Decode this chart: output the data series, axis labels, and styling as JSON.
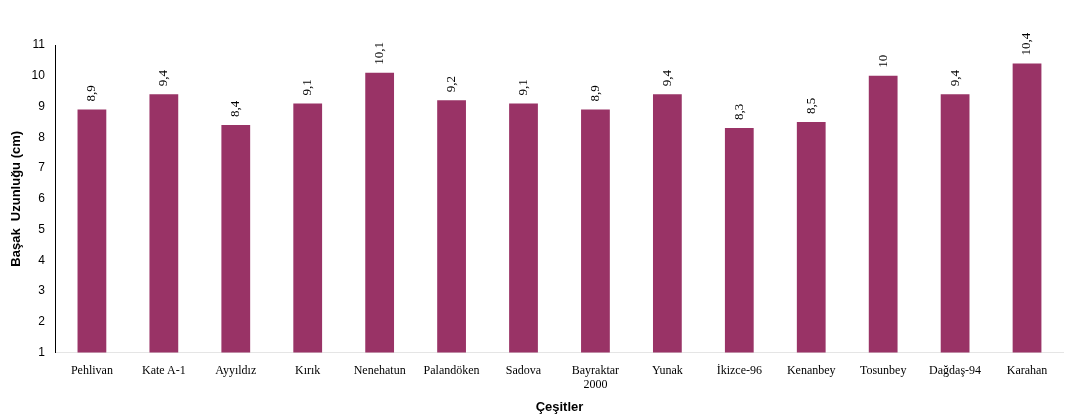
{
  "chart_data": {
    "type": "bar",
    "xlabel": "Çeşitler",
    "ylabel": "Başak  Uzunluğu (cm)",
    "categories": [
      "Pehlivan",
      "Kate A-1",
      "Ayyıldız",
      "Kırık",
      "Nenehatun",
      "Palandöken",
      "Sadova",
      "Bayraktar 2000",
      "Yunak",
      "İkizce-96",
      "Kenanbey",
      "Tosunbey",
      "Dağdaş-94",
      "Karahan"
    ],
    "values": [
      8.9,
      9.4,
      8.4,
      9.1,
      10.1,
      9.2,
      9.1,
      8.9,
      9.4,
      8.3,
      8.5,
      10,
      9.4,
      10.4
    ],
    "value_labels": [
      "8,9",
      "9,4",
      "8,4",
      "9,1",
      "10,1",
      "9,2",
      "9,1",
      "8,9",
      "9,4",
      "8,3",
      "8,5",
      "10",
      "9,4",
      "10,4"
    ],
    "color": "#993366",
    "ylim": [
      1,
      11
    ],
    "yticks": [
      1,
      2,
      3,
      4,
      5,
      6,
      7,
      8,
      9,
      10,
      11
    ],
    "grid": false,
    "legend": false
  }
}
